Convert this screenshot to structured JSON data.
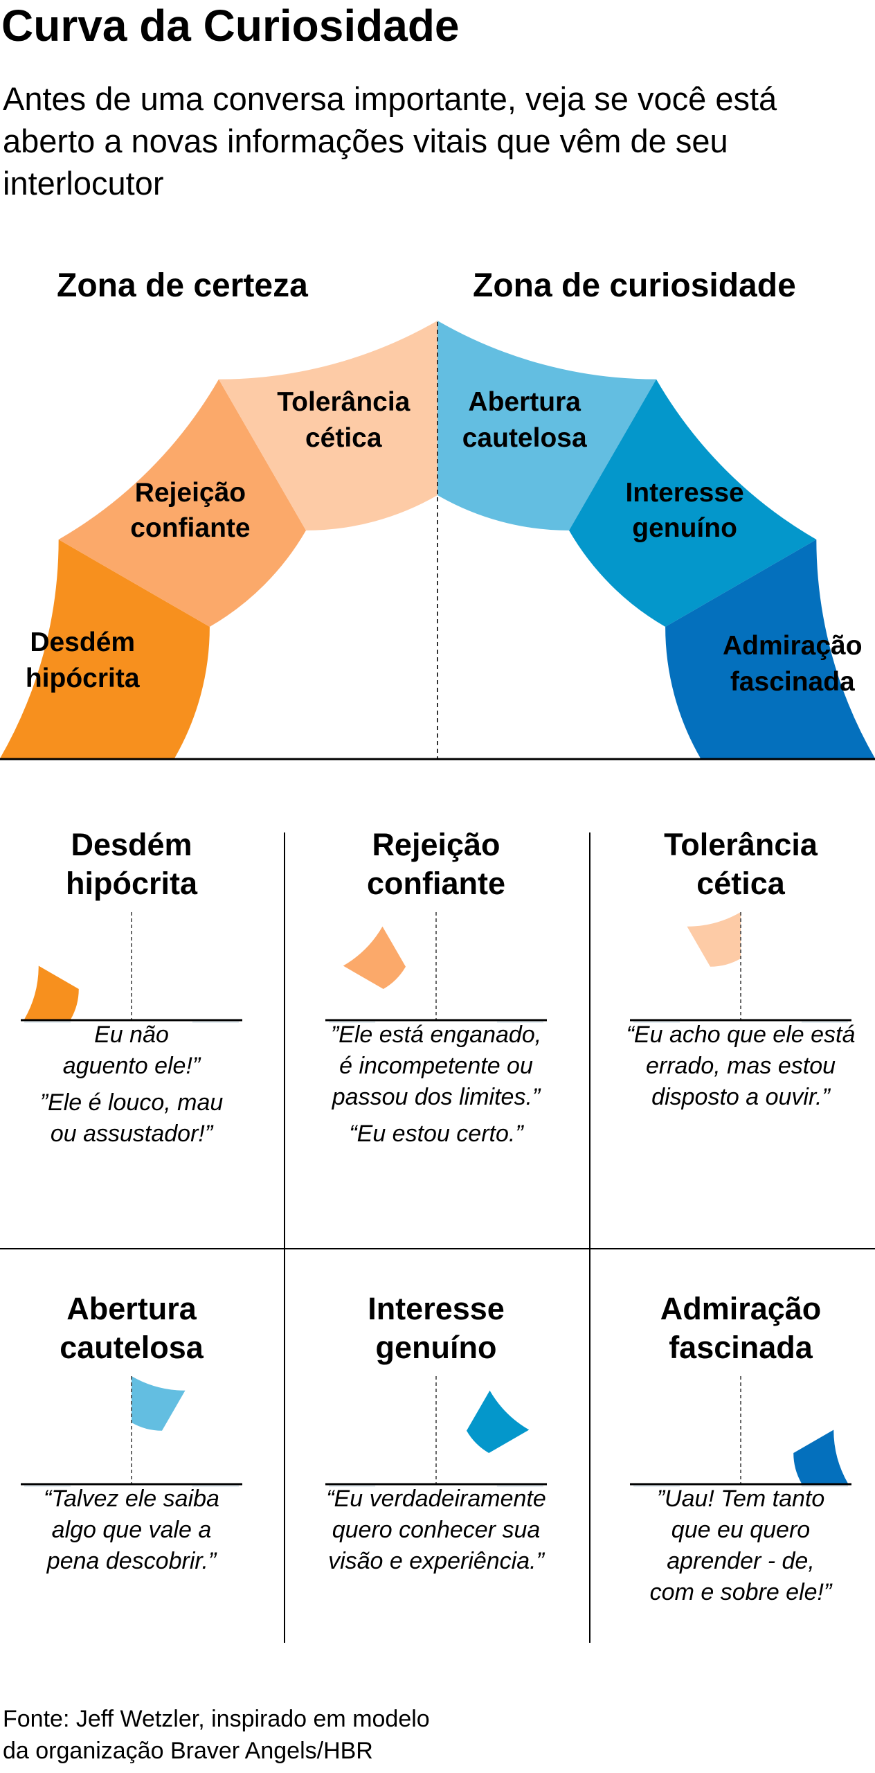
{
  "title": "Curva da Curiosidade",
  "subtitle": "Antes de uma conversa importante, veja se você está aberto a novas informações vitais que vêm de seu interlocutor",
  "zones": {
    "certainty": "Zona de certeza",
    "curiosity": "Zona de curiosidade"
  },
  "colors": {
    "desdem": "#F7901E",
    "rejeicao": "#FBA96A",
    "tolerancia": "#FDCBA6",
    "abertura": "#63BEE1",
    "interesse": "#0497CB",
    "admiracao": "#0470BD",
    "mini_track": "#E4ECF1"
  },
  "stages": [
    {
      "key": "desdem",
      "title": [
        "Desdém",
        "hipócrita"
      ],
      "quotes": [
        [
          "Eu não",
          "aguento ele!”"
        ],
        [
          "”Ele é louco, mau",
          "ou assustador!”"
        ]
      ]
    },
    {
      "key": "rejeicao",
      "title": [
        "Rejeição",
        "confiante"
      ],
      "quotes": [
        [
          "”Ele está enganado,",
          "é incompetente ou",
          "passou dos limites.”"
        ],
        [
          "“Eu estou certo.”"
        ]
      ]
    },
    {
      "key": "tolerancia",
      "title": [
        "Tolerância",
        "cética"
      ],
      "quotes": [
        [
          "“Eu acho que ele está",
          "errado, mas estou",
          "disposto a ouvir.”"
        ]
      ]
    },
    {
      "key": "abertura",
      "title": [
        "Abertura",
        "cautelosa"
      ],
      "quotes": [
        [
          "“Talvez ele saiba",
          "algo que vale a",
          "pena descobrir.”"
        ]
      ]
    },
    {
      "key": "interesse",
      "title": [
        "Interesse",
        "genuíno"
      ],
      "quotes": [
        [
          "“Eu verdadeiramente",
          "quero conhecer sua",
          "visão e experiência.”"
        ]
      ]
    },
    {
      "key": "admiracao",
      "title": [
        "Admiração",
        "fascinada"
      ],
      "quotes": [
        [
          "”Uau! Tem tanto",
          "que eu quero",
          "aprender - de,",
          "com e sobre ele!”"
        ]
      ]
    }
  ],
  "source": [
    "Fonte: Jeff Wetzler, inspirado em modelo",
    "da organização Braver Angels/HBR"
  ]
}
